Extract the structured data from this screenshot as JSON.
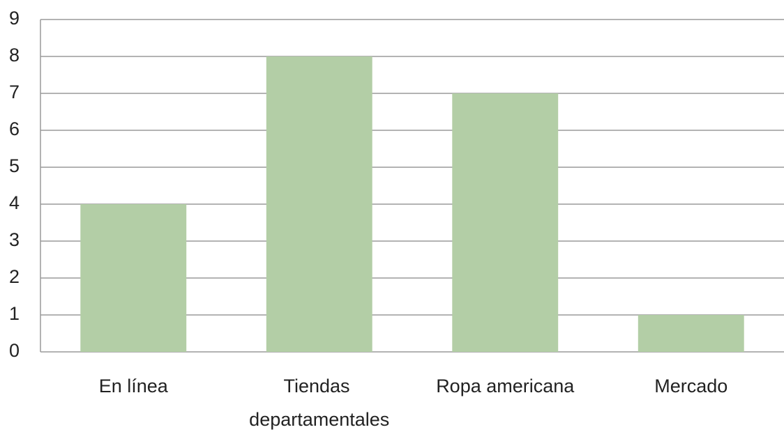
{
  "chart_data": {
    "type": "bar",
    "categories": [
      "En línea",
      "Tiendas departamentales",
      "Ropa americana",
      "Mercado"
    ],
    "values": [
      4,
      8,
      7,
      1
    ],
    "color": "#b3cea6",
    "ylim": [
      0,
      9
    ],
    "yticks": [
      0,
      1,
      2,
      3,
      4,
      5,
      6,
      7,
      8,
      9
    ],
    "grid": true
  }
}
